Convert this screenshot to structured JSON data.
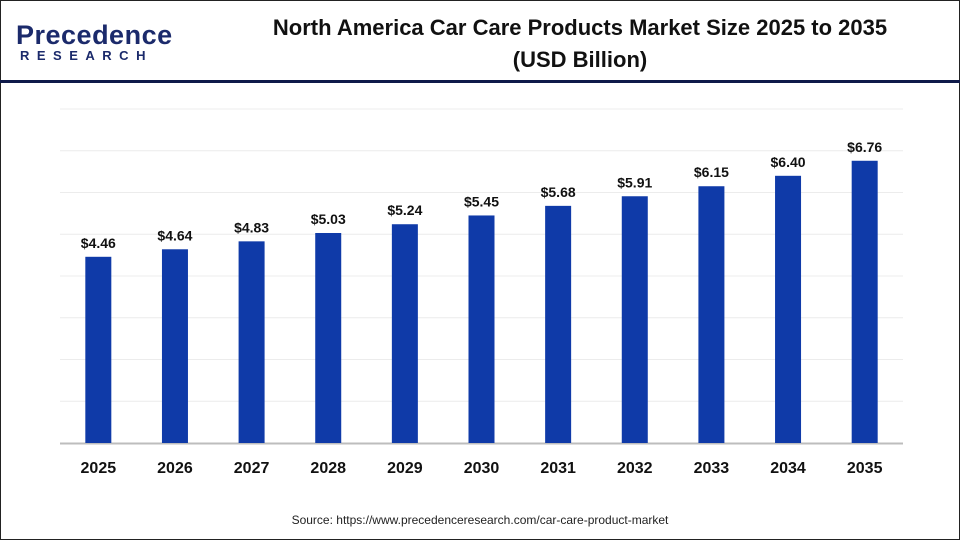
{
  "brand": {
    "logo_line1": "Precedence",
    "logo_line2": "RESEARCH"
  },
  "header": {
    "title_line1": "North America Car Care Products Market Size 2025 to 2035",
    "title_line2": "(USD Billion)"
  },
  "source": "Source: https://www.precedenceresearch.com/car-care-product-market",
  "colors": {
    "bar": "#0f3aa8",
    "header_line": "#0f1a4a",
    "grid": "#ececec",
    "axis": "#bdbdbd"
  },
  "chart_data": {
    "type": "bar",
    "title": "North America Car Care Products Market Size 2025 to 2035 (USD Billion)",
    "categories": [
      "2025",
      "2026",
      "2027",
      "2028",
      "2029",
      "2030",
      "2031",
      "2032",
      "2033",
      "2034",
      "2035"
    ],
    "values": [
      4.46,
      4.64,
      4.83,
      5.03,
      5.24,
      5.45,
      5.68,
      5.91,
      6.15,
      6.4,
      6.76
    ],
    "data_labels": [
      "$4.46",
      "$4.64",
      "$4.83",
      "$5.03",
      "$5.24",
      "$5.45",
      "$5.68",
      "$5.91",
      "$6.15",
      "$6.40",
      "$6.76"
    ],
    "ylim": [
      0,
      8
    ],
    "grid": true,
    "y_axis_labels_shown": false,
    "xlabel": "",
    "ylabel": ""
  }
}
